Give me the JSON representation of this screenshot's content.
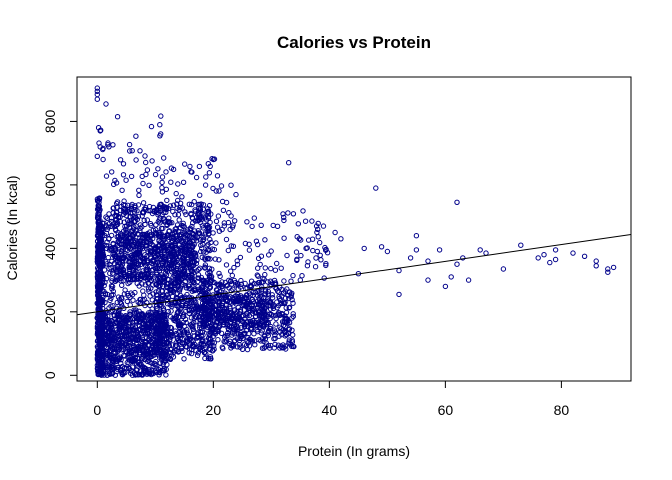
{
  "chart_data": {
    "type": "scatter",
    "title": "Calories vs Protein",
    "xlabel": "Protein (In grams)",
    "ylabel": "Calories (In kcal)",
    "xlim": [
      -3.5,
      92
    ],
    "ylim": [
      -18,
      940
    ],
    "x_ticks": [
      0,
      20,
      40,
      60,
      80
    ],
    "y_ticks": [
      0,
      200,
      400,
      600,
      800
    ],
    "grid": false,
    "legend": "none",
    "point_color": "#00008B",
    "point_shape": "open-circle",
    "regression_line": {
      "intercept": 200,
      "slope": 2.65
    },
    "clusters": [
      {
        "x_range": [
          0,
          0.5
        ],
        "y_range": [
          0,
          560
        ],
        "count": 160
      },
      {
        "x_range": [
          0,
          1
        ],
        "y_range": [
          0,
          480
        ],
        "count": 320
      },
      {
        "x_range": [
          0.5,
          12
        ],
        "y_range": [
          0,
          200
        ],
        "count": 600
      },
      {
        "x_range": [
          1,
          20
        ],
        "y_range": [
          50,
          540
        ],
        "count": 900
      },
      {
        "x_range": [
          3,
          17
        ],
        "y_range": [
          300,
          450
        ],
        "count": 450
      },
      {
        "x_range": [
          10,
          34
        ],
        "y_range": [
          80,
          300
        ],
        "count": 700
      },
      {
        "x_range": [
          18,
          30
        ],
        "y_range": [
          150,
          260
        ],
        "count": 250
      },
      {
        "x_range": [
          2,
          24
        ],
        "y_range": [
          450,
          690
        ],
        "count": 120
      },
      {
        "x_range": [
          0,
          12
        ],
        "y_range": [
          620,
          820
        ],
        "count": 25
      },
      {
        "x_range": [
          14,
          40
        ],
        "y_range": [
          300,
          520
        ],
        "count": 120
      }
    ],
    "points": [
      [
        0,
        905
      ],
      [
        0,
        895
      ],
      [
        0,
        885
      ],
      [
        0,
        870
      ],
      [
        1.5,
        855
      ],
      [
        3.5,
        815
      ],
      [
        0.5,
        770
      ],
      [
        0.5,
        720
      ],
      [
        1,
        715
      ],
      [
        2,
        720
      ],
      [
        0,
        690
      ],
      [
        1,
        680
      ],
      [
        33,
        670
      ],
      [
        45,
        320
      ],
      [
        48,
        590
      ],
      [
        49,
        405
      ],
      [
        52,
        330
      ],
      [
        52,
        255
      ],
      [
        54,
        370
      ],
      [
        55,
        395
      ],
      [
        55,
        440
      ],
      [
        57,
        360
      ],
      [
        57,
        300
      ],
      [
        59,
        395
      ],
      [
        60,
        280
      ],
      [
        61,
        310
      ],
      [
        62,
        545
      ],
      [
        62,
        350
      ],
      [
        63,
        370
      ],
      [
        64,
        300
      ],
      [
        66,
        395
      ],
      [
        67,
        385
      ],
      [
        70,
        335
      ],
      [
        73,
        410
      ],
      [
        76,
        370
      ],
      [
        77,
        380
      ],
      [
        78,
        355
      ],
      [
        79,
        365
      ],
      [
        79,
        395
      ],
      [
        82,
        385
      ],
      [
        84,
        375
      ],
      [
        86,
        345
      ],
      [
        86,
        360
      ],
      [
        88,
        325
      ],
      [
        88,
        335
      ],
      [
        89,
        340
      ],
      [
        36,
        400
      ],
      [
        38,
        460
      ],
      [
        39,
        470
      ],
      [
        41,
        450
      ],
      [
        42,
        430
      ],
      [
        46,
        400
      ],
      [
        50,
        390
      ],
      [
        35,
        300
      ]
    ]
  }
}
